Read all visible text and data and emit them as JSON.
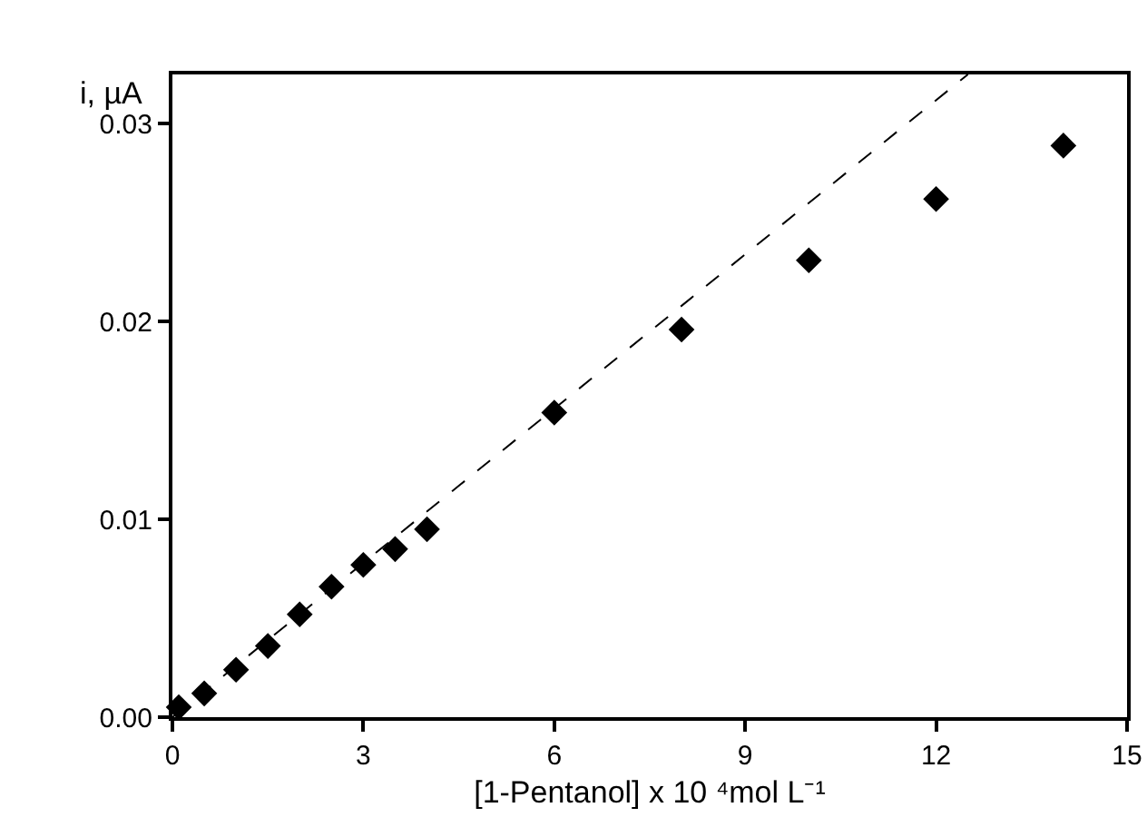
{
  "chart_data": {
    "type": "scatter",
    "xlabel": "[1-Pentanol] x 10 ⁴mol L⁻¹",
    "ylabel": "i, µA",
    "x": [
      0.1,
      0.5,
      1.0,
      1.5,
      2.0,
      2.5,
      3.0,
      3.5,
      4.0,
      6.0,
      8.0,
      10.0,
      12.0,
      14.0
    ],
    "series": [
      {
        "color": "#000000",
        "marker": "diamond",
        "values": [
          0.0005,
          0.0012,
          0.0024,
          0.0036,
          0.0052,
          0.0066,
          0.0077,
          0.0085,
          0.0095,
          0.0154,
          0.0196,
          0.0231,
          0.0262,
          0.0289
        ]
      },
      {
        "type": "line",
        "color": "#000000",
        "line_style": "dashed",
        "marker": "none",
        "x": [
          0,
          12.5
        ],
        "values": [
          0,
          0.0325
        ]
      }
    ],
    "xlim": [
      0,
      15
    ],
    "ylim": [
      0,
      0.0325
    ],
    "xticks": [
      0,
      3,
      6,
      9,
      12,
      15
    ],
    "yticks": [
      {
        "value": 0,
        "label": "0.00"
      },
      {
        "value": 0.01,
        "label": "0.01"
      },
      {
        "value": 0.02,
        "label": "0.02"
      },
      {
        "value": 0.03,
        "label": "0.03"
      }
    ],
    "grid": false
  }
}
